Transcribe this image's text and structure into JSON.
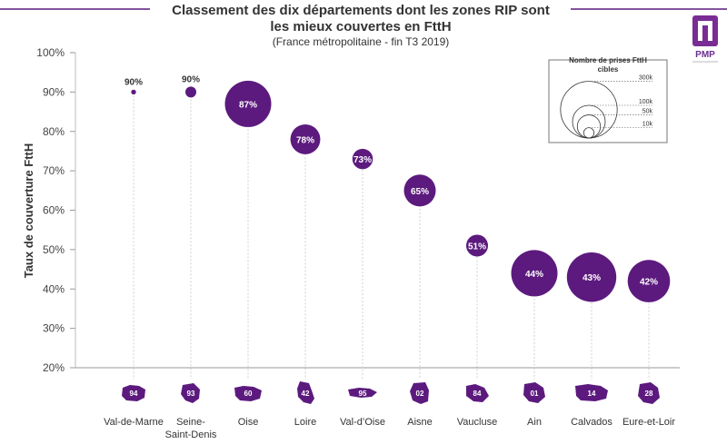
{
  "chart_data": {
    "type": "bubble",
    "title_line1": "Classement des dix départements dont les zones RIP sont",
    "title_line2": "les mieux couvertes en FttH",
    "subtitle": "(France métropolitaine - fin T3 2019)",
    "ylabel": "Taux de couverture FttH",
    "ylim": [
      20,
      100
    ],
    "yticks": [
      "20%",
      "30%",
      "40%",
      "50%",
      "60%",
      "70%",
      "80%",
      "90%",
      "100%"
    ],
    "ytick_values": [
      20,
      30,
      40,
      50,
      60,
      70,
      80,
      90,
      100
    ],
    "color": "#5c1a7e",
    "points": [
      {
        "name": "Val-de-Marne",
        "label_line1": "Val-de-Marne",
        "label_line2": "",
        "code": "94",
        "value": 90,
        "value_label": "90%",
        "prises": 2,
        "label_outside": true
      },
      {
        "name": "Seine-Saint-Denis",
        "label_line1": "Seine-",
        "label_line2": "Saint-Denis",
        "code": "93",
        "value": 90,
        "value_label": "90%",
        "prises": 10,
        "label_outside": true
      },
      {
        "name": "Oise",
        "label_line1": "Oise",
        "label_line2": "",
        "code": "60",
        "value": 87,
        "value_label": "87%",
        "prises": 180,
        "label_outside": false
      },
      {
        "name": "Loire",
        "label_line1": "Loire",
        "label_line2": "",
        "code": "42",
        "value": 78,
        "value_label": "78%",
        "prises": 75,
        "label_outside": false
      },
      {
        "name": "Val-d'Oise",
        "label_line1": "Val-d’Oise",
        "label_line2": "",
        "code": "95",
        "value": 73,
        "value_label": "73%",
        "prises": 35,
        "label_outside": false
      },
      {
        "name": "Aisne",
        "label_line1": "Aisne",
        "label_line2": "",
        "code": "02",
        "value": 65,
        "value_label": "65%",
        "prises": 85,
        "label_outside": false
      },
      {
        "name": "Vaucluse",
        "label_line1": "Vaucluse",
        "label_line2": "",
        "code": "84",
        "value": 51,
        "value_label": "51%",
        "prises": 40,
        "label_outside": false
      },
      {
        "name": "Ain",
        "label_line1": "Ain",
        "label_line2": "",
        "code": "01",
        "value": 44,
        "value_label": "44%",
        "prises": 180,
        "label_outside": false
      },
      {
        "name": "Calvados",
        "label_line1": "Calvados",
        "label_line2": "",
        "code": "14",
        "value": 43,
        "value_label": "43%",
        "prises": 205,
        "label_outside": false
      },
      {
        "name": "Eure-et-Loir",
        "label_line1": "Eure-et-Loir",
        "label_line2": "",
        "code": "28",
        "value": 42,
        "value_label": "42%",
        "prises": 150,
        "label_outside": false
      }
    ],
    "legend": {
      "title_line1": "Nombre de prises FttH",
      "title_line2": "cibles",
      "sizes": [
        {
          "label": "300k",
          "value": 300
        },
        {
          "label": "100k",
          "value": 100
        },
        {
          "label": "50k",
          "value": 50
        },
        {
          "label": "10k",
          "value": 10
        }
      ]
    }
  },
  "logo": {
    "text": "PMP"
  }
}
